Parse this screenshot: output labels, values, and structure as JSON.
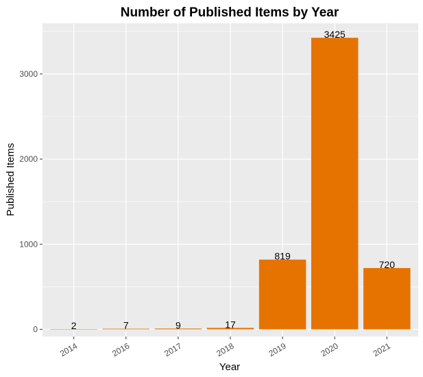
{
  "chart_data": {
    "type": "bar",
    "title": "Number of Published Items by Year",
    "xlabel": "Year",
    "ylabel": "Published Items",
    "categories": [
      "2014",
      "2016",
      "2017",
      "2018",
      "2019",
      "2020",
      "2021"
    ],
    "values": [
      2,
      7,
      9,
      17,
      819,
      3425,
      720
    ],
    "data_labels": [
      "2",
      "7",
      "9",
      "17",
      "819",
      "3425",
      "720"
    ],
    "ylim": [
      -85,
      3595
    ],
    "yticks": [
      0,
      1000,
      2000,
      3000
    ],
    "ytick_labels": [
      "0",
      "1000",
      "2000",
      "3000"
    ],
    "grid": true,
    "legend": "none",
    "colors": {
      "bar": "#E67300",
      "panel_background": "#EBEBEB",
      "grid_major": "#FFFFFF"
    }
  }
}
